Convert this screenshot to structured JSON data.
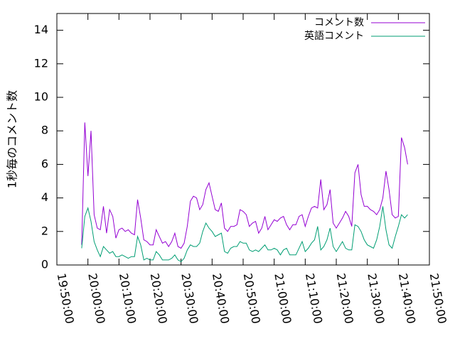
{
  "chart_data": {
    "type": "line",
    "ylabel": "1秒毎のコメント数",
    "x": [
      "19:58:00",
      "19:59:00",
      "20:00:00",
      "20:01:00",
      "20:02:00",
      "20:03:00",
      "20:04:00",
      "20:05:00",
      "20:06:00",
      "20:07:00",
      "20:08:00",
      "20:09:00",
      "20:10:00",
      "20:11:00",
      "20:12:00",
      "20:13:00",
      "20:14:00",
      "20:15:00",
      "20:16:00",
      "20:17:00",
      "20:18:00",
      "20:19:00",
      "20:20:00",
      "20:21:00",
      "20:22:00",
      "20:23:00",
      "20:24:00",
      "20:25:00",
      "20:26:00",
      "20:27:00",
      "20:28:00",
      "20:29:00",
      "20:30:00",
      "20:31:00",
      "20:32:00",
      "20:33:00",
      "20:34:00",
      "20:35:00",
      "20:36:00",
      "20:37:00",
      "20:38:00",
      "20:39:00",
      "20:40:00",
      "20:41:00",
      "20:42:00",
      "20:43:00",
      "20:44:00",
      "20:45:00",
      "20:46:00",
      "20:47:00",
      "20:48:00",
      "20:49:00",
      "20:50:00",
      "20:51:00",
      "20:52:00",
      "20:53:00",
      "20:54:00",
      "20:55:00",
      "20:56:00",
      "20:57:00",
      "20:58:00",
      "20:59:00",
      "21:00:00",
      "21:01:00",
      "21:02:00",
      "21:03:00",
      "21:04:00",
      "21:05:00",
      "21:06:00",
      "21:07:00",
      "21:08:00",
      "21:09:00",
      "21:10:00",
      "21:11:00",
      "21:12:00",
      "21:13:00",
      "21:14:00",
      "21:15:00",
      "21:16:00",
      "21:17:00",
      "21:18:00",
      "21:19:00",
      "21:20:00",
      "21:21:00",
      "21:22:00",
      "21:23:00",
      "21:24:00",
      "21:25:00",
      "21:26:00",
      "21:27:00",
      "21:28:00",
      "21:29:00",
      "21:30:00",
      "21:31:00",
      "21:32:00",
      "21:33:00",
      "21:34:00",
      "21:35:00",
      "21:36:00",
      "21:37:00",
      "21:38:00",
      "21:39:00",
      "21:40:00",
      "21:41:00",
      "21:42:00",
      "21:43:00"
    ],
    "series": [
      {
        "name": "コメント数",
        "color": "#9400d3",
        "values": [
          1.2,
          8.5,
          5.3,
          8.0,
          3.0,
          2.2,
          2.1,
          3.5,
          1.9,
          3.3,
          2.9,
          1.6,
          2.1,
          2.2,
          2.0,
          2.1,
          1.9,
          1.8,
          3.9,
          2.8,
          1.5,
          1.4,
          1.2,
          1.2,
          2.1,
          1.7,
          1.3,
          1.4,
          1.1,
          1.4,
          1.9,
          1.1,
          1.0,
          1.3,
          2.3,
          3.8,
          4.1,
          4.0,
          3.3,
          3.6,
          4.5,
          4.9,
          4.1,
          3.3,
          3.2,
          3.7,
          2.2,
          2.0,
          2.3,
          2.3,
          2.4,
          3.3,
          3.2,
          3.0,
          2.3,
          2.5,
          2.6,
          1.9,
          2.2,
          2.9,
          2.1,
          2.4,
          2.7,
          2.6,
          2.8,
          2.9,
          2.4,
          2.1,
          2.4,
          2.4,
          2.9,
          3.0,
          2.3,
          2.9,
          3.4,
          3.5,
          3.4,
          5.1,
          3.3,
          3.6,
          4.5,
          2.5,
          2.2,
          2.5,
          2.8,
          3.2,
          2.9,
          2.3,
          5.5,
          6.0,
          4.2,
          3.5,
          3.5,
          3.3,
          3.2,
          3.0,
          3.3,
          4.0,
          5.6,
          4.5,
          3.0,
          2.8,
          2.9,
          7.6,
          7.0,
          6.0
        ]
      },
      {
        "name": "英語コメント",
        "color": "#009e73",
        "values": [
          1.0,
          2.9,
          3.4,
          2.6,
          1.4,
          0.9,
          0.5,
          1.1,
          0.9,
          0.7,
          0.8,
          0.5,
          0.5,
          0.6,
          0.5,
          0.4,
          0.5,
          0.5,
          1.7,
          1.2,
          0.3,
          0.4,
          0.3,
          0.3,
          0.8,
          0.6,
          0.3,
          0.3,
          0.3,
          0.4,
          0.6,
          0.3,
          0.2,
          0.4,
          0.9,
          1.2,
          1.1,
          1.1,
          1.3,
          2.0,
          2.5,
          2.2,
          2.0,
          1.7,
          1.8,
          1.9,
          0.8,
          0.7,
          1.0,
          1.1,
          1.1,
          1.4,
          1.3,
          1.3,
          0.9,
          0.8,
          0.9,
          0.8,
          1.0,
          1.2,
          0.9,
          0.9,
          1.0,
          0.9,
          0.6,
          0.9,
          1.0,
          0.6,
          0.6,
          0.6,
          1.0,
          1.4,
          0.8,
          1.0,
          1.3,
          1.5,
          2.3,
          0.9,
          1.1,
          1.5,
          2.2,
          1.1,
          0.8,
          1.1,
          1.4,
          1.0,
          0.9,
          0.9,
          2.4,
          2.3,
          2.0,
          1.5,
          1.2,
          1.1,
          1.0,
          1.5,
          2.3,
          3.5,
          2.1,
          1.2,
          1.0,
          1.7,
          2.3,
          3.0,
          2.8,
          3.0
        ]
      }
    ],
    "xlim": [
      "19:50:00",
      "21:50:00"
    ],
    "xticks": [
      "19:50:00",
      "20:00:00",
      "20:10:00",
      "20:20:00",
      "20:30:00",
      "20:40:00",
      "20:50:00",
      "21:00:00",
      "21:10:00",
      "21:20:00",
      "21:30:00",
      "21:40:00",
      "21:50:00"
    ],
    "ylim": [
      0,
      15
    ],
    "yticks": [
      0,
      2,
      4,
      6,
      8,
      10,
      12,
      14
    ],
    "legend": "upper right"
  }
}
